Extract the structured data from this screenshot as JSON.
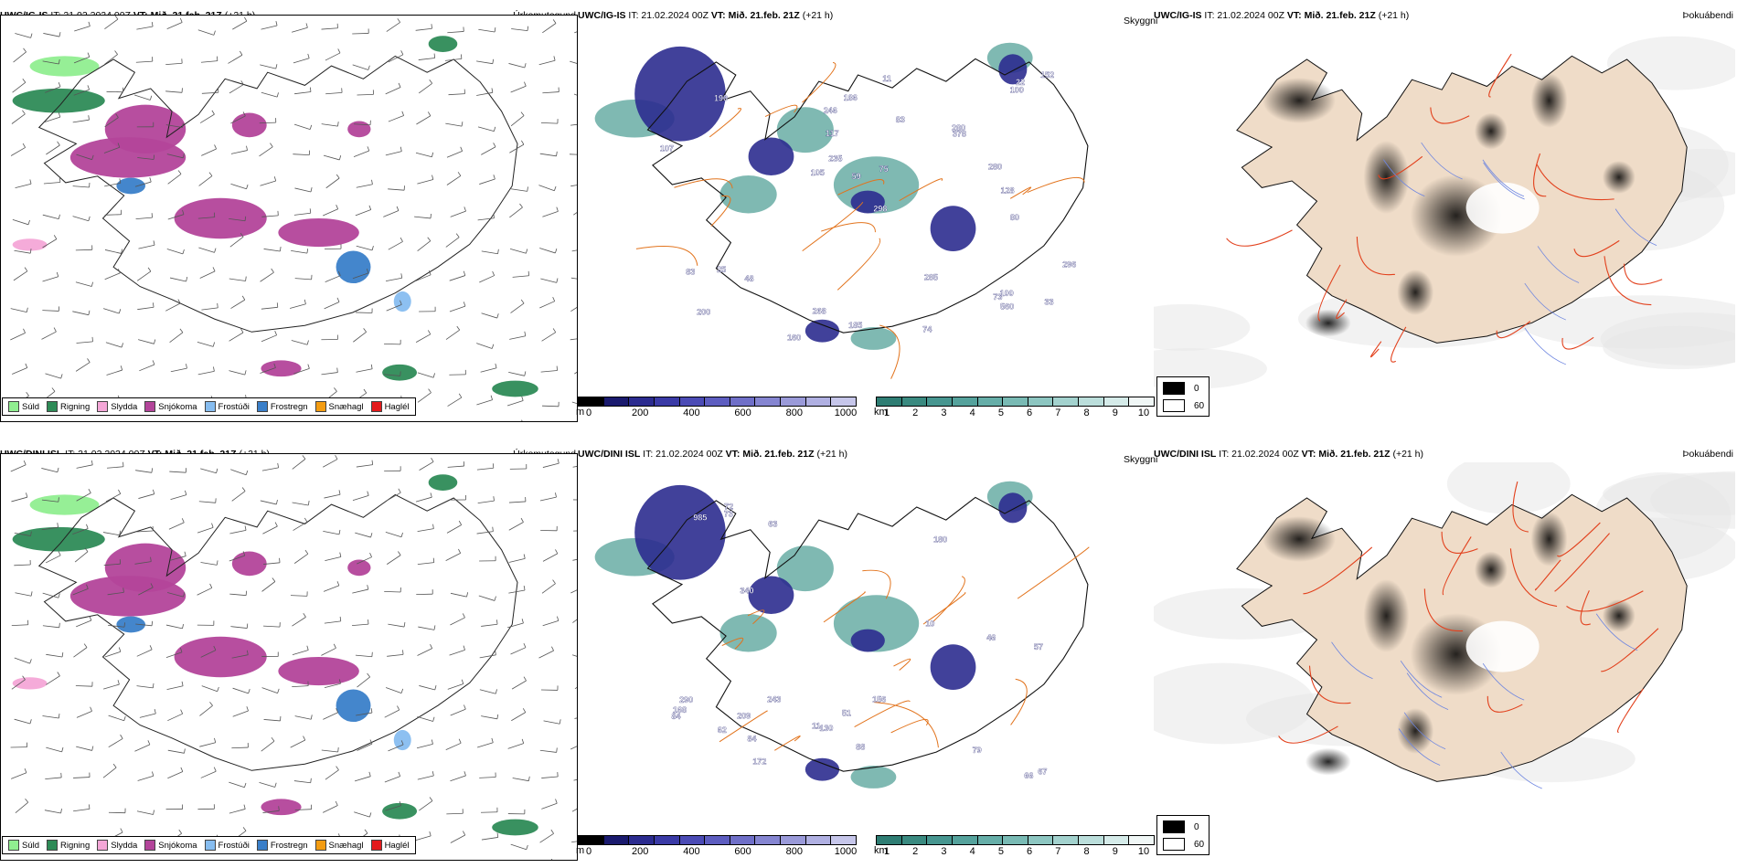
{
  "common": {
    "issue": "IT: 21.02.2024 00Z",
    "valid_label": "VT:",
    "valid": "Mið. 21.feb. 21Z",
    "lead": "(+21 h)"
  },
  "rows": [
    {
      "model": "UWC/IG-IS",
      "left_title": "Úrkomutegund",
      "right_title": "Þokuábendi",
      "right_prefix": "Skyggni",
      "mid_labels": [
        "100",
        "83",
        "73",
        "83",
        "25",
        "105",
        "285",
        "296",
        "280",
        "268",
        "152",
        "186",
        "200",
        "160",
        "74",
        "190",
        "185",
        "378",
        "560",
        "280",
        "107",
        "298",
        "246",
        "128",
        "75",
        "100",
        "11",
        "48",
        "235",
        "59",
        "22",
        "117",
        "33",
        "80"
      ]
    },
    {
      "model": "UWC/DINI ISL",
      "left_title": "Úrkomutegund",
      "right_title": "Þokuábendi",
      "right_prefix": "Skyggni",
      "mid_labels": [
        "63",
        "84",
        "156",
        "72",
        "84",
        "67",
        "243",
        "130",
        "79",
        "57",
        "66",
        "11",
        "51",
        "290",
        "985",
        "209",
        "340",
        "172",
        "88",
        "180",
        "62",
        "10",
        "46",
        "73",
        "168"
      ]
    }
  ],
  "precip_legend": [
    {
      "label": "Súld",
      "color": "#90ee90"
    },
    {
      "label": "Rigning",
      "color": "#2e8b57"
    },
    {
      "label": "Slydda",
      "color": "#f4a6d7"
    },
    {
      "label": "Snjókoma",
      "color": "#b3449a"
    },
    {
      "label": "Frostúði",
      "color": "#87bdf0"
    },
    {
      "label": "Frostregn",
      "color": "#3a7fc9"
    },
    {
      "label": "Snæhagl",
      "color": "#f39c12"
    },
    {
      "label": "Haglél",
      "color": "#e31a1c"
    }
  ],
  "height_scale": {
    "unit": "m",
    "ticks": [
      "0",
      "200",
      "400",
      "600",
      "800",
      "1000"
    ],
    "colors": [
      "#000000",
      "#1a1a6e",
      "#2b2b8f",
      "#3a3aa6",
      "#4b4bb5",
      "#5d5dc0",
      "#6f6fc8",
      "#8585d1",
      "#9a9ad9",
      "#b0b0e2",
      "#c6c6ea"
    ]
  },
  "vis_scale": {
    "unit": "km",
    "ticks": [
      "1",
      "2",
      "3",
      "4",
      "5",
      "6",
      "7",
      "8",
      "9",
      "10"
    ],
    "colors": [
      "#2e7d73",
      "#3a8a80",
      "#479690",
      "#55a29c",
      "#66aea8",
      "#79bab4",
      "#8dc6c1",
      "#a3d2ce",
      "#bbdedb",
      "#d5ebe9",
      "#f0f7f6"
    ]
  },
  "fog_legend": {
    "items": [
      {
        "label": "0",
        "color": "#000000"
      },
      {
        "label": "60",
        "color": "#ffffff"
      }
    ]
  }
}
